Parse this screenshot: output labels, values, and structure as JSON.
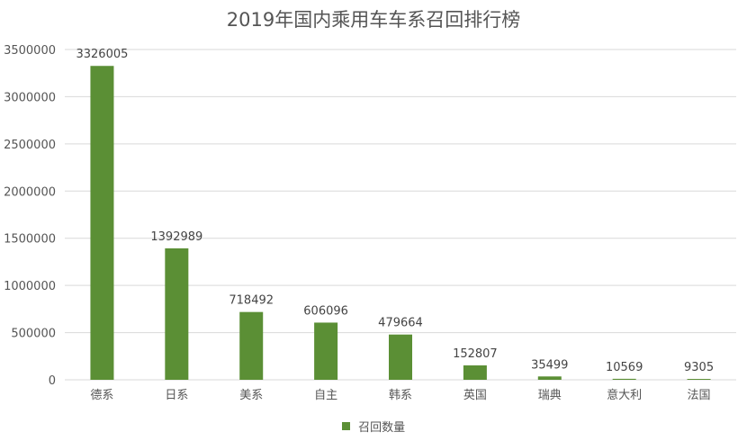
{
  "chart_data": {
    "type": "bar",
    "title": "2019年国内乘用车车系召回排行榜",
    "categories": [
      "德系",
      "日系",
      "美系",
      "自主",
      "韩系",
      "英国",
      "瑞典",
      "意大利",
      "法国"
    ],
    "series": [
      {
        "name": "召回数量",
        "values": [
          3326005,
          1392989,
          718492,
          606096,
          479664,
          152807,
          35499,
          10569,
          9305
        ]
      }
    ],
    "data_labels": [
      "3326005",
      "1392989",
      "718492",
      "606096",
      "479664",
      "152807",
      "35499",
      "10569",
      "9305"
    ],
    "ylim": [
      0,
      3500000
    ],
    "yticks": [
      0,
      500000,
      1000000,
      1500000,
      2000000,
      2500000,
      3000000,
      3500000
    ],
    "ytick_labels": [
      "0",
      "500000",
      "1000000",
      "1500000",
      "2000000",
      "2500000",
      "3000000",
      "3500000"
    ],
    "xlabel": "",
    "ylabel": "",
    "grid": true,
    "legend_position": "bottom",
    "colors": {
      "bar": "#5b8f35",
      "grid": "#d9d9d9",
      "text": "#555555",
      "label": "#444444"
    }
  }
}
